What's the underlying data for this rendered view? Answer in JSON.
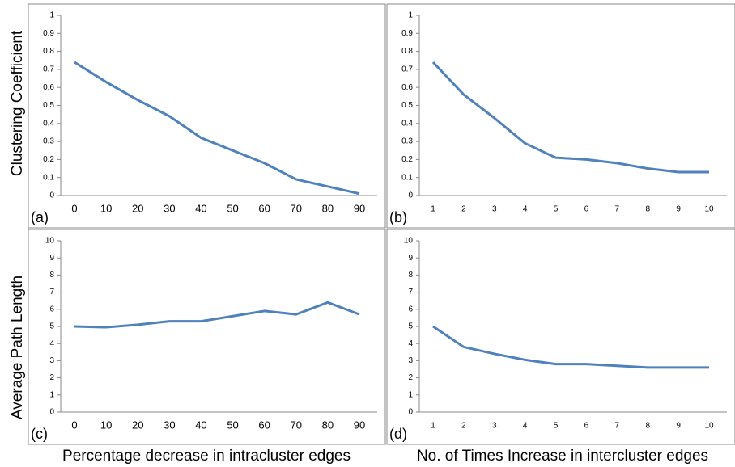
{
  "chart_data": [
    {
      "type": "line",
      "label": "(a)",
      "ylabel": "Clustering Coefficient",
      "categories": [
        "0",
        "10",
        "20",
        "30",
        "40",
        "50",
        "60",
        "70",
        "80",
        "90"
      ],
      "values": [
        0.74,
        0.63,
        0.53,
        0.44,
        0.32,
        0.25,
        0.18,
        0.09,
        0.05,
        0.01
      ],
      "color": "#4f81bd",
      "ylim": [
        0,
        1
      ],
      "yticks": [
        0,
        0.1,
        0.2,
        0.3,
        0.4,
        0.5,
        0.6,
        0.7,
        0.8,
        0.9,
        1
      ]
    },
    {
      "type": "line",
      "label": "(b)",
      "categories": [
        "1",
        "2",
        "3",
        "4",
        "5",
        "6",
        "7",
        "8",
        "9",
        "10"
      ],
      "values": [
        0.74,
        0.56,
        0.43,
        0.29,
        0.21,
        0.2,
        0.18,
        0.15,
        0.13,
        0.13
      ],
      "color": "#4f81bd",
      "ylim": [
        0,
        1
      ],
      "yticks": [
        0,
        0.1,
        0.2,
        0.3,
        0.4,
        0.5,
        0.6,
        0.7,
        0.8,
        0.9,
        1
      ]
    },
    {
      "type": "line",
      "label": "(c)",
      "ylabel": "Average Path Length",
      "xlabel": "Percentage decrease in intracluster edges",
      "categories": [
        "0",
        "10",
        "20",
        "30",
        "40",
        "50",
        "60",
        "70",
        "80",
        "90"
      ],
      "values": [
        5.0,
        4.95,
        5.1,
        5.3,
        5.3,
        5.6,
        5.9,
        5.7,
        6.4,
        5.7
      ],
      "color": "#4f81bd",
      "ylim": [
        0,
        10
      ],
      "yticks": [
        0,
        1,
        2,
        3,
        4,
        5,
        6,
        7,
        8,
        9,
        10
      ]
    },
    {
      "type": "line",
      "label": "(d)",
      "xlabel": "No. of Times Increase in intercluster edges",
      "categories": [
        "1",
        "2",
        "3",
        "4",
        "5",
        "6",
        "7",
        "8",
        "9",
        "10"
      ],
      "values": [
        5.0,
        3.8,
        3.4,
        3.05,
        2.8,
        2.8,
        2.7,
        2.6,
        2.6,
        2.6
      ],
      "color": "#4f81bd",
      "ylim": [
        0,
        10
      ],
      "yticks": [
        0,
        1,
        2,
        3,
        4,
        5,
        6,
        7,
        8,
        9,
        10
      ]
    }
  ]
}
